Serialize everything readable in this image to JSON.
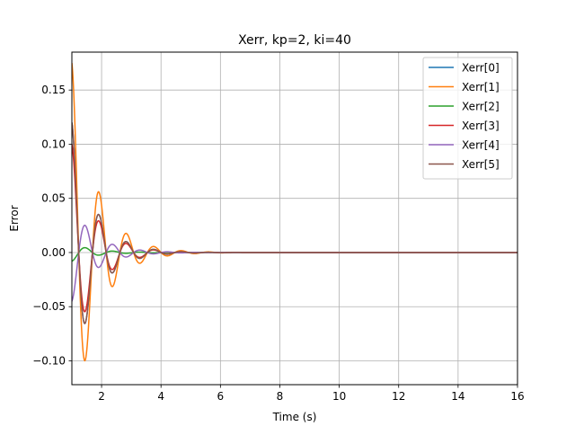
{
  "chart_data": {
    "type": "line",
    "title": "Xerr, kp=2, ki=40",
    "xlabel": "Time (s)",
    "ylabel": "Error",
    "xlim": [
      1,
      16
    ],
    "ylim": [
      -0.122,
      0.185
    ],
    "xticks": [
      2,
      4,
      6,
      8,
      10,
      12,
      14,
      16
    ],
    "yticks": [
      -0.1,
      -0.05,
      0.0,
      0.05,
      0.1,
      0.15
    ],
    "ytick_labels": [
      "−0.10",
      "−0.05",
      "0.00",
      "0.05",
      "0.10",
      "0.15"
    ],
    "grid": true,
    "legend_position": "top-right",
    "series": [
      {
        "name": "Xerr[0]",
        "color": "#1f77b4",
        "y0": 0.12,
        "phase": 0.0,
        "decay": 1.35,
        "omega": 6.8
      },
      {
        "name": "Xerr[1]",
        "color": "#ff7f0e",
        "y0": 0.175,
        "phase": 0.0,
        "decay": 1.25,
        "omega": 6.8
      },
      {
        "name": "Xerr[2]",
        "color": "#2ca02c",
        "y0": -0.008,
        "phase": 0.0,
        "decay": 1.3,
        "omega": 6.8
      },
      {
        "name": "Xerr[3]",
        "color": "#d62728",
        "y0": 0.1,
        "phase": 0.0,
        "decay": 1.35,
        "omega": 6.8
      },
      {
        "name": "Xerr[4]",
        "color": "#9467bd",
        "y0": -0.045,
        "phase": 0.0,
        "decay": 1.3,
        "omega": 6.8
      },
      {
        "name": "Xerr[5]",
        "color": "#8c564b",
        "y0": 0.12,
        "phase": 0.0,
        "decay": 1.35,
        "omega": 6.8
      }
    ]
  }
}
